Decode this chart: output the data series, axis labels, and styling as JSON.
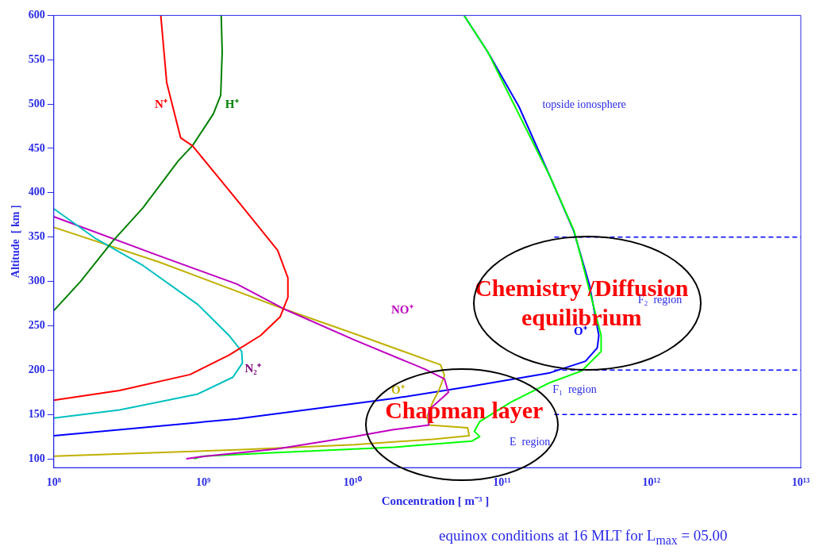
{
  "chart_data": {
    "type": "line",
    "xlabel": "Concentration  [ m⁻³ ]",
    "ylabel": "Altitude  [ km ]",
    "log": "x",
    "grid": false,
    "legend": false,
    "marker": "none",
    "line_style": "solid",
    "xlim": [
      100000000,
      10000000000000
    ],
    "ylim": [
      90,
      600
    ],
    "xticks": [
      {
        "value": 100000000,
        "label": "10⁸"
      },
      {
        "value": 1000000000,
        "label": "10⁹"
      },
      {
        "value": 10000000000,
        "label": "10¹⁰"
      },
      {
        "value": 100000000000,
        "label": "10¹¹"
      },
      {
        "value": 1000000000000,
        "label": "10¹²"
      },
      {
        "value": 10000000000000,
        "label": "10¹³"
      }
    ],
    "yticks": [
      100,
      150,
      200,
      250,
      300,
      350,
      400,
      450,
      500,
      550,
      600
    ],
    "series": [
      {
        "color": "#ff0000",
        "x": [
          520000000,
          570000000,
          706000000,
          847000000,
          1680000000,
          3150000000,
          3690000000,
          3690000000,
          3270000000,
          2420000000,
          1490000000,
          817000000,
          275000000,
          100000000
        ],
        "values": [
          600,
          524,
          462,
          453,
          392,
          335,
          304,
          282,
          260,
          239,
          217,
          195,
          177,
          166
        ]
      },
      {
        "color": "#008000",
        "x": [
          1320000000,
          1340000000,
          1310000000,
          1170000000,
          847000000,
          681000000,
          395000000,
          244000000,
          151000000,
          100000000
        ],
        "values": [
          600,
          559,
          510,
          489,
          453,
          436,
          383,
          344,
          300,
          267
        ]
      },
      {
        "color": "#00c0c0",
        "x": [
          100000000,
          192000000,
          395000000,
          920000000,
          1490000000,
          1810000000,
          1830000000,
          1580000000,
          920000000,
          275000000,
          100000000
        ],
        "values": [
          382,
          348,
          318,
          274,
          239,
          221,
          208,
          192,
          173,
          155,
          146
        ]
      },
      {
        "color": "#c000c0",
        "x": [
          100000000,
          504000000,
          1680000000,
          3470000000,
          10300000000,
          30500000000,
          41200000000,
          43800000000,
          38800000000,
          32400000000,
          32400000000,
          18800000000,
          10300000000,
          3080000000,
          1040000000,
          769000000
        ],
        "values": [
          373,
          329,
          297,
          269,
          234,
          201,
          190,
          175,
          167,
          155,
          138,
          133,
          125,
          111,
          103,
          100
        ]
      },
      {
        "color": "#c0b000",
        "x": [
          100000000,
          504000000,
          3470000000,
          10300000000,
          38800000000,
          41200000000,
          37800000000,
          34400000000,
          31600000000,
          32400000000,
          58900000000,
          60300000000,
          34400000000,
          10300000000,
          1680000000,
          100000000
        ],
        "values": [
          361,
          322,
          269,
          241,
          206,
          194,
          177,
          164,
          148,
          138,
          135,
          126,
          122,
          116,
          110,
          103
        ]
      },
      {
        "color": "#00ff00",
        "x": [
          55700000000,
          80200000000,
          210000000000,
          304000000000,
          461000000000,
          461000000000,
          341000000000,
          210000000000,
          115000000000,
          71000000000,
          65300000000,
          71000000000,
          63000000000,
          18800000000,
          3080000000,
          1000000000,
          867000000
        ],
        "values": [
          600,
          559,
          418,
          357,
          239,
          221,
          199,
          186,
          164,
          142,
          131,
          125,
          120,
          113,
          107,
          103,
          100
        ]
      },
      {
        "color": "#0000ff",
        "x": [
          55700000000,
          80200000000,
          130000000000,
          210000000000,
          302000000000,
          385000000000,
          445000000000,
          434000000000,
          362000000000,
          210000000000,
          63000000000,
          18800000000,
          1680000000,
          100000000
        ],
        "values": [
          600,
          559,
          497,
          418,
          357,
          296,
          239,
          225,
          210,
          197,
          182,
          168,
          145,
          126
        ]
      }
    ],
    "ref_lines": [
      {
        "axis": "y",
        "value": 350,
        "color": "#0000ff",
        "line_style": "dashed"
      },
      {
        "axis": "y",
        "value": 200,
        "color": "#0000ff",
        "line_style": "dashed"
      },
      {
        "axis": "y",
        "value": 150,
        "color": "#0000ff",
        "line_style": "dashed"
      }
    ],
    "annotations": [
      "N⁺",
      "H⁺",
      "NO⁺",
      "N₂⁺",
      "O⁺",
      "O⁺",
      "topside ionosphere",
      "F₂  region",
      "F₁  region",
      "E  region",
      "Chemistry /Diffusion",
      "equilibrium",
      "Chapman layer",
      "equinox conditions at 16 MLT for L$_{max}$ = 05.00"
    ]
  }
}
